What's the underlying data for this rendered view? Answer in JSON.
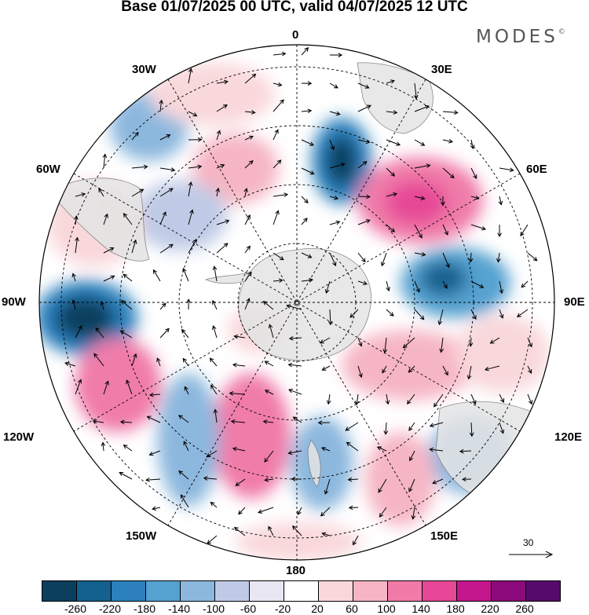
{
  "title": "Base 01/07/2025 00 UTC, valid 04/07/2025 12 UTC",
  "logo": {
    "text": "MODES",
    "mark": "©"
  },
  "map": {
    "projection": "polar-stereographic-south",
    "longitude_labels": {
      "top": "0",
      "bottom": "180",
      "w30": "30W",
      "w60": "60W",
      "w90": "90W",
      "w120": "120W",
      "w150": "150W",
      "e30": "30E",
      "e60": "60E",
      "e90": "90E",
      "e120": "120E",
      "e150": "150E"
    },
    "reference_vector": {
      "label": "30"
    }
  },
  "colorbar": {
    "colors": [
      "#0c3f5e",
      "#14608f",
      "#2b80bd",
      "#55a1d0",
      "#8cb8de",
      "#bfcbe6",
      "#e8e6f2",
      "#ffffff",
      "#f9d8db",
      "#f6b5c4",
      "#f07ba9",
      "#e64897",
      "#c4168d",
      "#8c0b7c",
      "#560b6c"
    ],
    "ticks": [
      "-260",
      "-220",
      "-180",
      "-140",
      "-100",
      "-60",
      "-20",
      "20",
      "60",
      "100",
      "140",
      "180",
      "220",
      "260"
    ]
  }
}
